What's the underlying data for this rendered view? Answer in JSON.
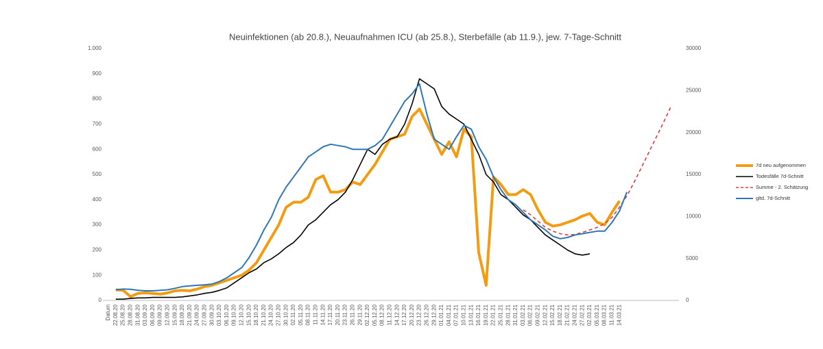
{
  "chart_data": {
    "type": "line",
    "title": "Neuinfektionen (ab 20.8.), Neuaufnahmen ICU (ab 25.8.), Sterbefälle (ab 11.9.), jew. 7-Tage-Schnitt",
    "categories": [
      "Datum",
      "22.08.20",
      "25.08.20",
      "28.08.20",
      "31.08.20",
      "03.09.20",
      "06.09.20",
      "09.09.20",
      "12.09.20",
      "15.09.20",
      "18.09.20",
      "21.09.20",
      "24.09.20",
      "27.09.20",
      "30.09.20",
      "03.10.20",
      "06.10.20",
      "09.10.20",
      "12.10.20",
      "15.10.20",
      "18.10.20",
      "21.10.20",
      "24.10.20",
      "27.10.20",
      "30.10.20",
      "02.11.20",
      "05.11.20",
      "08.11.20",
      "11.11.20",
      "14.11.20",
      "17.11.20",
      "20.11.20",
      "23.11.20",
      "26.11.20",
      "29.11.20",
      "02.12.20",
      "05.12.20",
      "08.12.20",
      "11.12.20",
      "14.12.20",
      "17.12.20",
      "20.12.20",
      "23.12.20",
      "26.12.20",
      "29.12.20",
      "01.01.21",
      "04.01.21",
      "07.01.21",
      "10.01.21",
      "13.01.21",
      "16.01.21",
      "19.01.21",
      "22.01.21",
      "25.01.21",
      "28.01.21",
      "31.01.21",
      "03.02.21",
      "06.02.21",
      "09.02.21",
      "12.02.21",
      "15.02.21",
      "18.02.21",
      "21.02.21",
      "24.02.21",
      "27.02.21",
      "02.03.21",
      "05.03.21",
      "08.03.21",
      "11.03.21",
      "14.03.21",
      null,
      null,
      null,
      null,
      null,
      null,
      null
    ],
    "series": [
      {
        "name": "7d neu aufgenommen",
        "color": "#f39c12",
        "values": [
          null,
          42,
          40,
          15,
          28,
          30,
          28,
          25,
          30,
          38,
          40,
          38,
          45,
          55,
          60,
          70,
          80,
          90,
          100,
          120,
          150,
          200,
          250,
          300,
          370,
          390,
          390,
          410,
          480,
          495,
          430,
          430,
          440,
          470,
          460,
          500,
          540,
          590,
          640,
          650,
          660,
          730,
          760,
          700,
          640,
          580,
          630,
          570,
          680,
          650,
          190,
          60,
          490,
          460,
          420,
          420,
          440,
          420,
          360,
          310,
          295,
          300,
          310,
          320,
          335,
          345,
          310,
          300,
          350,
          395,
          null,
          null,
          null,
          null,
          null,
          null,
          null
        ]
      },
      {
        "name": "Todesfälle 7d-Schnitt",
        "color": "#000000",
        "values": [
          null,
          5,
          5,
          8,
          10,
          10,
          12,
          12,
          12,
          12,
          14,
          18,
          22,
          28,
          32,
          40,
          50,
          70,
          90,
          110,
          125,
          150,
          165,
          185,
          210,
          230,
          260,
          300,
          320,
          350,
          380,
          400,
          430,
          480,
          540,
          600,
          580,
          620,
          640,
          650,
          700,
          780,
          880,
          860,
          840,
          770,
          740,
          720,
          700,
          640,
          580,
          500,
          470,
          420,
          400,
          370,
          340,
          320,
          290,
          260,
          240,
          220,
          200,
          185,
          180,
          185,
          null,
          null,
          null,
          null,
          null,
          null,
          null,
          null,
          null,
          null,
          null
        ]
      },
      {
        "name": "Summe - 2. Schätzung",
        "color": "#e0393e",
        "dashed": true,
        "axis": "y2",
        "values": [
          null,
          null,
          null,
          null,
          null,
          null,
          null,
          null,
          null,
          null,
          null,
          null,
          null,
          null,
          null,
          null,
          null,
          null,
          null,
          null,
          null,
          null,
          null,
          null,
          null,
          null,
          null,
          null,
          null,
          null,
          null,
          null,
          null,
          null,
          null,
          null,
          null,
          null,
          null,
          null,
          null,
          null,
          null,
          null,
          null,
          null,
          null,
          null,
          null,
          null,
          null,
          null,
          null,
          null,
          null,
          null,
          10800,
          10200,
          9450,
          8700,
          8250,
          7950,
          7800,
          7860,
          8100,
          8400,
          8700,
          9150,
          9900,
          11100,
          12450,
          14100,
          15900,
          17700,
          19500,
          21300,
          23190
        ]
      },
      {
        "name": "gltd. 7d-Schnitt",
        "color": "#2e75b6",
        "axis": "y2",
        "values": [
          null,
          1260,
          1350,
          1320,
          1200,
          1140,
          1140,
          1200,
          1260,
          1440,
          1650,
          1740,
          1800,
          1860,
          1950,
          2250,
          2700,
          3300,
          3900,
          5100,
          6600,
          8400,
          9900,
          12000,
          13500,
          14700,
          15900,
          17100,
          17700,
          18300,
          18600,
          18450,
          18300,
          18000,
          18000,
          18000,
          18450,
          19200,
          20700,
          22200,
          23700,
          24600,
          25800,
          22200,
          19200,
          18600,
          18000,
          19500,
          20850,
          20400,
          18300,
          16800,
          14700,
          13200,
          12000,
          11400,
          10500,
          9600,
          9000,
          8400,
          7650,
          7350,
          7500,
          7800,
          7950,
          8100,
          8250,
          8250,
          9300,
          10650,
          12900,
          null,
          null,
          null,
          null,
          null,
          null
        ]
      }
    ],
    "ylim": [
      0,
      1000
    ],
    "yticks": [
      0,
      100,
      200,
      300,
      400,
      500,
      600,
      700,
      800,
      900,
      {
        "value": 1000,
        "label": "1.000"
      }
    ],
    "y2lim": [
      0,
      30000
    ],
    "y2ticks": [
      0,
      5000,
      10000,
      15000,
      20000,
      25000,
      30000
    ],
    "legend": "right"
  }
}
